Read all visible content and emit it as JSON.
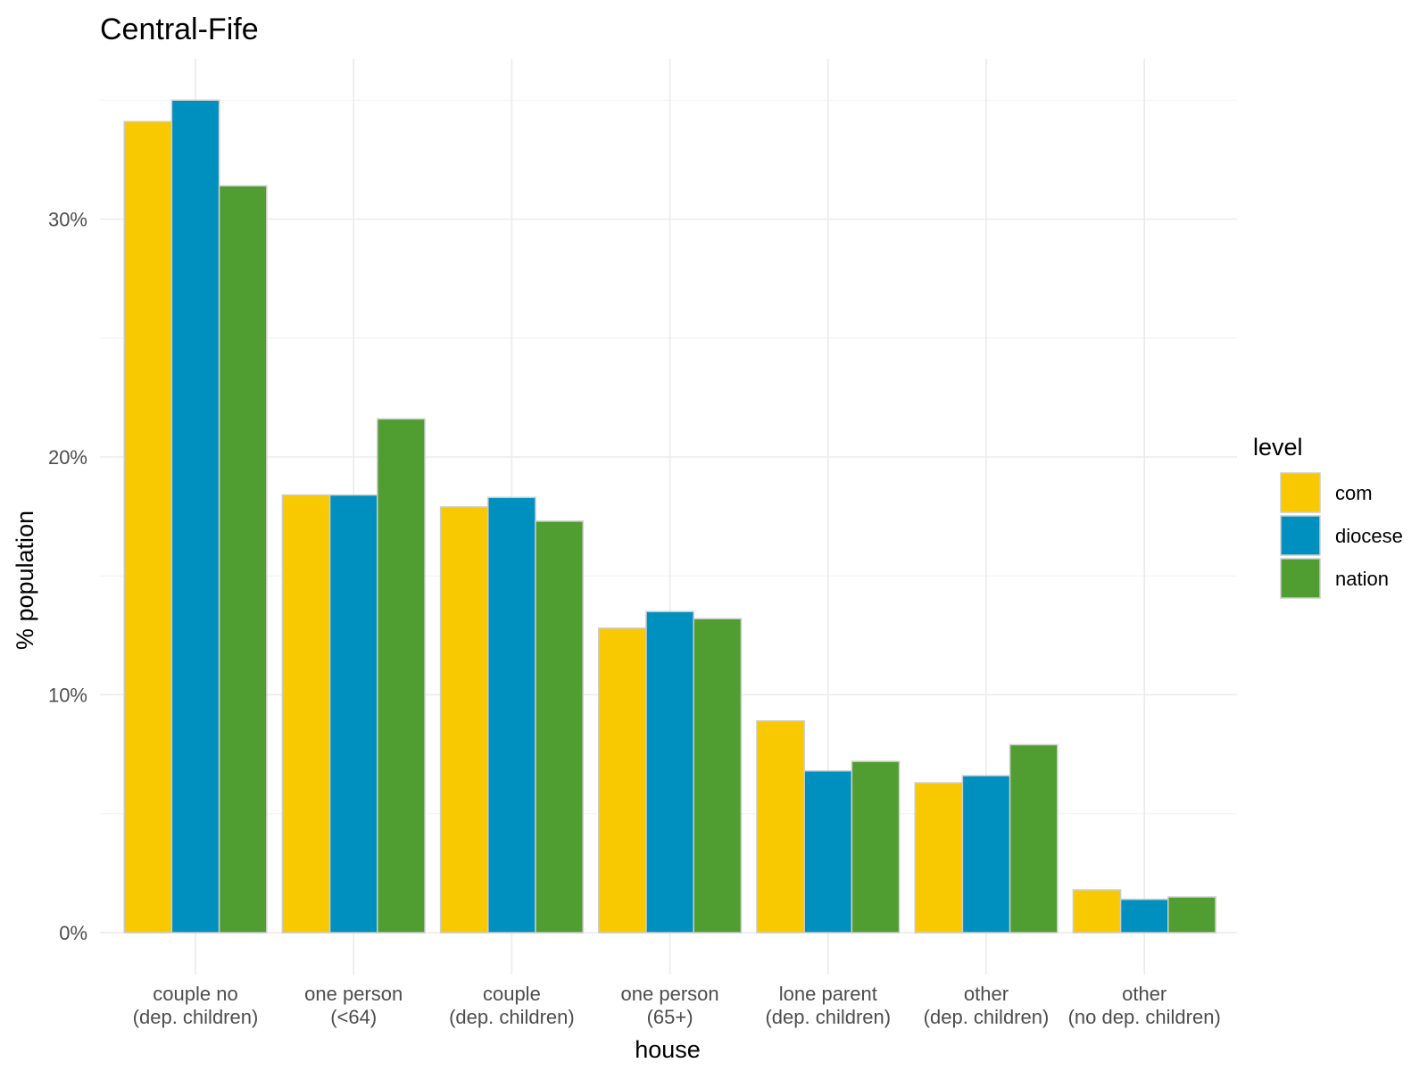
{
  "chart_data": {
    "type": "bar",
    "title": "Central-Fife",
    "xlabel": "house",
    "ylabel": "% population",
    "ylim": [
      0,
      36.7
    ],
    "yticks": [
      0,
      10,
      20,
      30
    ],
    "ytick_labels": [
      "0%",
      "10%",
      "20%",
      "30%"
    ],
    "categories": [
      [
        "couple no",
        "(dep. children)"
      ],
      [
        "one person",
        "(<64)"
      ],
      [
        "couple",
        "(dep. children)"
      ],
      [
        "one person",
        "(65+)"
      ],
      [
        "lone parent",
        "(dep. children)"
      ],
      [
        "other",
        "(dep. children)"
      ],
      [
        "other",
        "(no dep. children)"
      ]
    ],
    "series": [
      {
        "name": "com",
        "color": "#F8C900",
        "values": [
          34.1,
          18.4,
          17.9,
          12.8,
          8.9,
          6.3,
          1.8
        ]
      },
      {
        "name": "diocese",
        "color": "#0090BF",
        "values": [
          35.0,
          18.4,
          18.3,
          13.5,
          6.8,
          6.6,
          1.4
        ]
      },
      {
        "name": "nation",
        "color": "#509E31",
        "values": [
          31.4,
          21.6,
          17.3,
          13.2,
          7.2,
          7.9,
          1.5
        ]
      }
    ],
    "legend": {
      "title": "level",
      "position": "right"
    },
    "grid": true
  }
}
